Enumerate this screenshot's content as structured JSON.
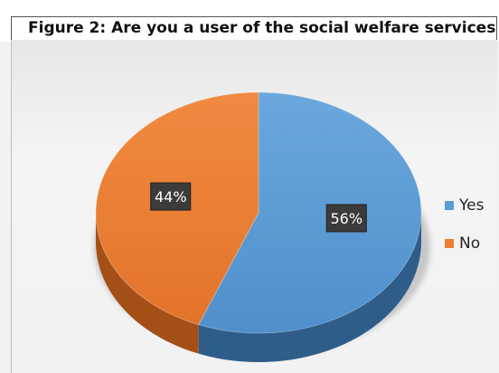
{
  "title": "Figure 2: Are you a user of the social welfare services?",
  "chart_data": {
    "type": "pie",
    "title": "Figure 2: Are you a user of the social welfare services?",
    "categories": [
      "Yes",
      "No"
    ],
    "values": [
      56,
      44
    ],
    "data_labels": [
      "56%",
      "44%"
    ],
    "colors": [
      "#5b9bd5",
      "#ed7d31"
    ],
    "style": "3d",
    "legend_position": "right"
  }
}
